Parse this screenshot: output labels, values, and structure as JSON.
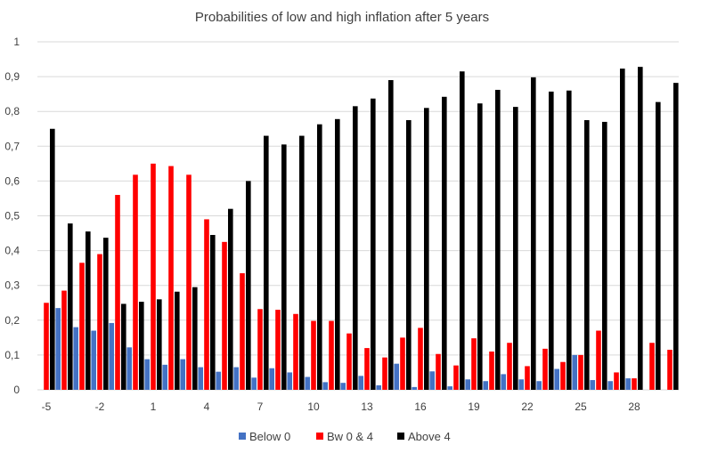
{
  "chart_data": {
    "type": "bar",
    "title": "Probabilities of low and high inflation after 5 years",
    "xlabel": "",
    "ylabel": "",
    "ylim": [
      0,
      1
    ],
    "y_ticks": [
      "0",
      "0,1",
      "0,2",
      "0,3",
      "0,4",
      "0,5",
      "0,6",
      "0,7",
      "0,8",
      "0,9",
      "1"
    ],
    "categories": [
      -5,
      -4,
      -3,
      -2,
      -1,
      0,
      1,
      2,
      3,
      4,
      5,
      6,
      7,
      8,
      9,
      10,
      11,
      12,
      13,
      14,
      15,
      16,
      17,
      18,
      19,
      20,
      21,
      22,
      23,
      24,
      25,
      26,
      27,
      28,
      29,
      30
    ],
    "x_tick_labels": [
      "-5",
      "-2",
      "1",
      "4",
      "7",
      "10",
      "13",
      "16",
      "19",
      "22",
      "25",
      "28"
    ],
    "x_tick_indices": [
      0,
      3,
      6,
      9,
      12,
      15,
      18,
      21,
      24,
      27,
      30,
      33
    ],
    "series": [
      {
        "name": "Below 0",
        "color": "#4472c4",
        "values": [
          0,
          0.235,
          0.18,
          0.17,
          0.192,
          0.122,
          0.088,
          0.072,
          0.088,
          0.065,
          0.052,
          0.065,
          0.035,
          0.062,
          0.05,
          0.037,
          0.022,
          0.02,
          0.04,
          0.013,
          0.075,
          0.008,
          0.053,
          0.01,
          0.03,
          0.025,
          0.045,
          0.03,
          0.025,
          0.06,
          0.1,
          0.028,
          0.025,
          0.033,
          0,
          0
        ]
      },
      {
        "name": "Bw 0 & 4",
        "color": "#ff0000",
        "values": [
          0.25,
          0.285,
          0.365,
          0.39,
          0.56,
          0.618,
          0.65,
          0.643,
          0.618,
          0.49,
          0.425,
          0.335,
          0.232,
          0.23,
          0.218,
          0.198,
          0.198,
          0.162,
          0.12,
          0.093,
          0.15,
          0.178,
          0.103,
          0.07,
          0.148,
          0.11,
          0.135,
          0.068,
          0.118,
          0.08,
          0.1,
          0.17,
          0.05,
          0.033,
          0.135,
          0.115
        ]
      },
      {
        "name": "Above 4",
        "color": "#000000",
        "values": [
          0.75,
          0.478,
          0.455,
          0.437,
          0.247,
          0.253,
          0.26,
          0.282,
          0.295,
          0.445,
          0.52,
          0.6,
          0.73,
          0.705,
          0.73,
          0.763,
          0.778,
          0.815,
          0.837,
          0.89,
          0.775,
          0.81,
          0.842,
          0.915,
          0.823,
          0.862,
          0.813,
          0.898,
          0.857,
          0.86,
          0.775,
          0.77,
          0.923,
          0.928,
          0.827,
          0.882
        ]
      }
    ],
    "legend": {
      "position": "bottom"
    },
    "grid": true
  }
}
